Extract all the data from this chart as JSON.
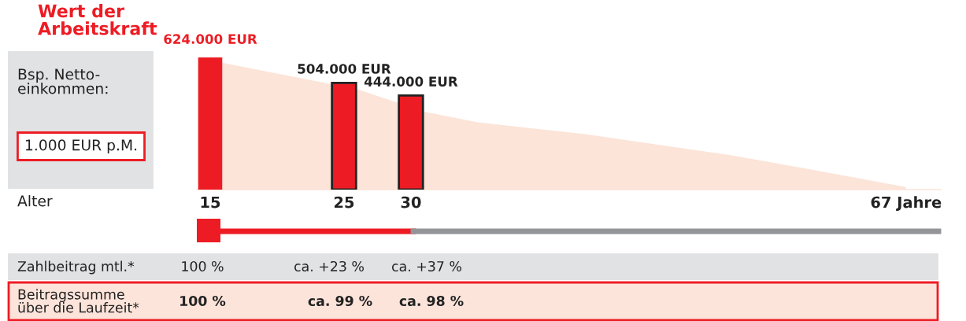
{
  "chart_data": {
    "type": "bar",
    "title": "Wert der\nArbeitskraft",
    "series": [
      {
        "type": "area",
        "color": "#fce4d8",
        "x": [
          15.9,
          26,
          31,
          35,
          43,
          54,
          60,
          67
        ],
        "values": [
          599000,
          474000,
          368000,
          318000,
          262000,
          162000,
          94000,
          12000
        ]
      },
      {
        "color": "#ed1c24",
        "x": [
          15,
          25,
          30
        ],
        "values": [
          624000,
          504000,
          444000
        ],
        "value_labels": [
          "624.000 EUR",
          "504.000 EUR",
          "444.000 EUR"
        ]
      }
    ],
    "xlim": [
      14,
      69.6
    ],
    "xticks": [
      15,
      25,
      30,
      {
        "value": 67,
        "label": "67 Jahre"
      }
    ],
    "tick_labels": "x",
    "annotations": [
      "Alter",
      "Bsp. Netto-\neinkommen:",
      "1.000 EUR p.M.",
      "Zahlbeitrag mtl.*",
      "100 %",
      "ca. +23 %",
      "ca. +37 %",
      "Beitragssumme\nüber die Laufzeit*",
      "100 %",
      "ca. 99 %",
      "ca. 98 %"
    ]
  }
}
